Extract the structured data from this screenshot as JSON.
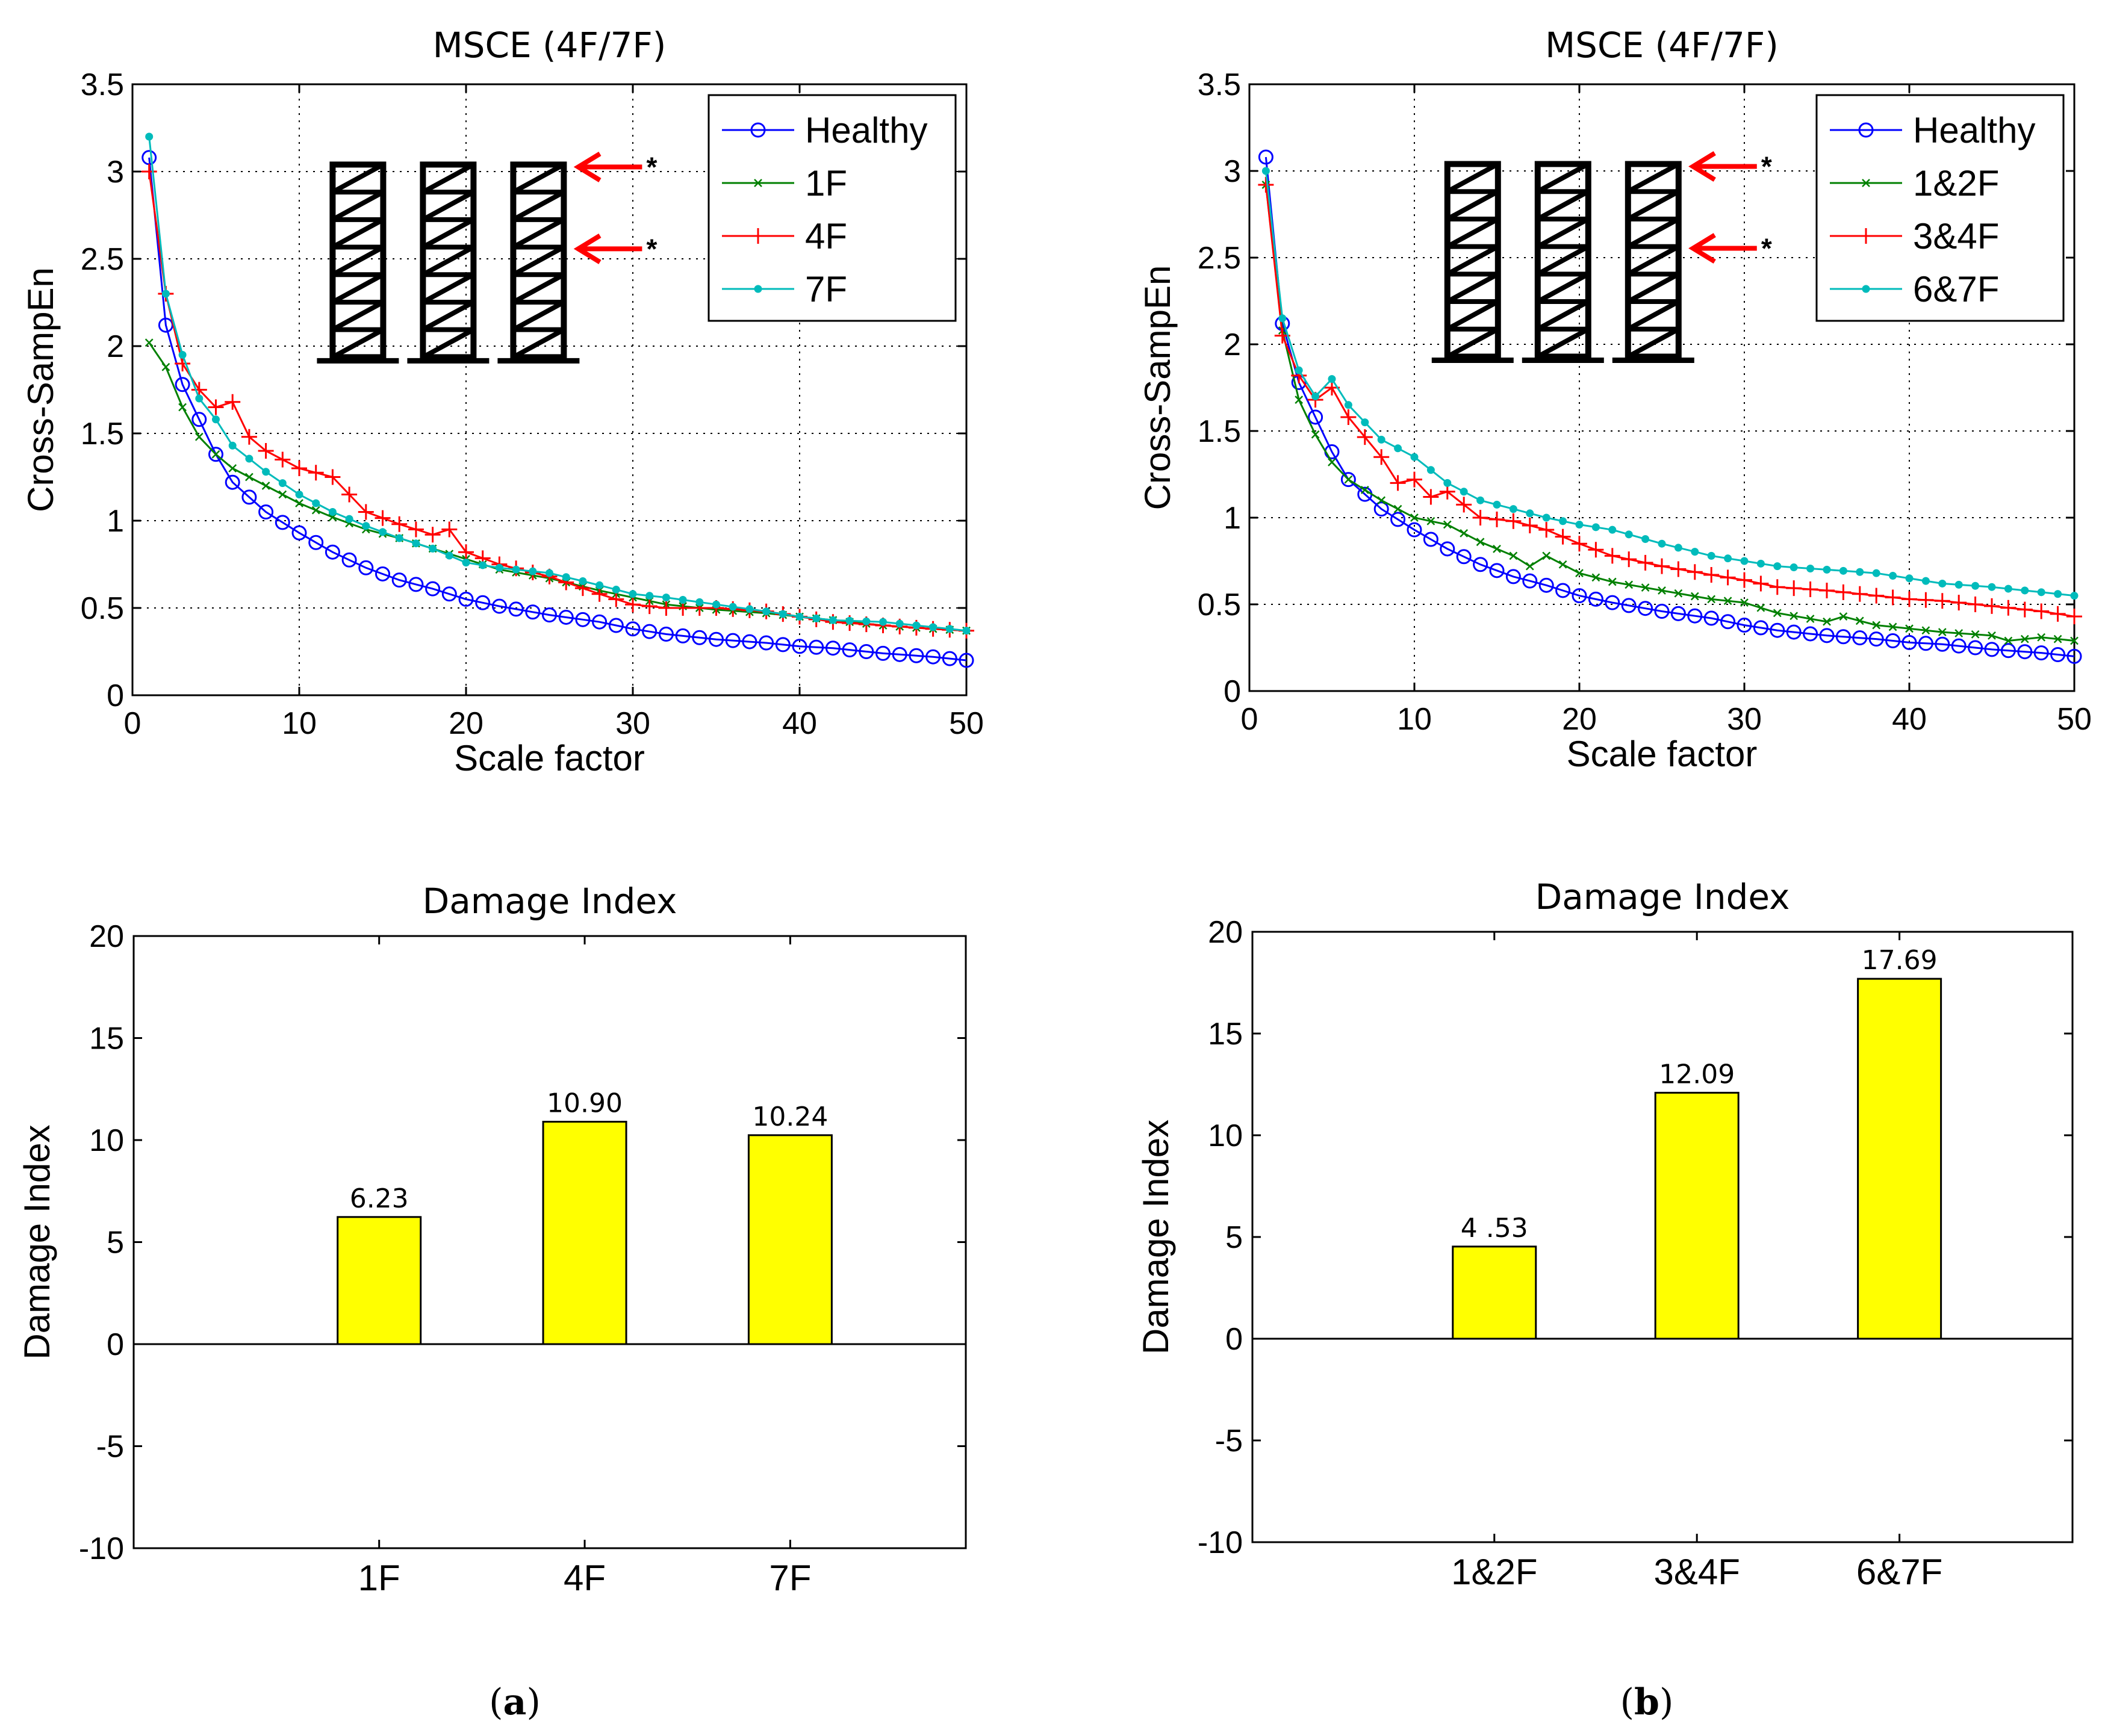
{
  "chart_data": [
    {
      "id": "a-line",
      "type": "line",
      "title": "MSCE (4F/7F)",
      "xlabel": "Scale factor",
      "ylabel": "Cross-SampEn",
      "xlim": [
        0,
        50
      ],
      "ylim": [
        0,
        3.5
      ],
      "xticks": [
        "0",
        "10",
        "20",
        "30",
        "40",
        "50"
      ],
      "yticks": [
        "0",
        "0.5",
        "1",
        "1.5",
        "2",
        "2.5",
        "3",
        "3.5"
      ],
      "grid": true,
      "legend_position": "top-right",
      "series": [
        {
          "name": "Healthy",
          "color": "#0000ff",
          "marker": "circle",
          "anchors": [
            [
              1,
              3.08
            ],
            [
              2,
              2.12
            ],
            [
              3,
              1.78
            ],
            [
              4,
              1.58
            ],
            [
              5,
              1.38
            ],
            [
              6,
              1.22
            ],
            [
              8,
              1.05
            ],
            [
              10,
              0.93
            ],
            [
              12,
              0.82
            ],
            [
              14,
              0.73
            ],
            [
              16,
              0.66
            ],
            [
              18,
              0.61
            ],
            [
              20,
              0.55
            ],
            [
              22,
              0.51
            ],
            [
              25,
              0.46
            ],
            [
              28,
              0.42
            ],
            [
              30,
              0.38
            ],
            [
              32,
              0.35
            ],
            [
              35,
              0.32
            ],
            [
              38,
              0.3
            ],
            [
              40,
              0.28
            ],
            [
              42,
              0.27
            ],
            [
              45,
              0.24
            ],
            [
              48,
              0.22
            ],
            [
              50,
              0.2
            ]
          ]
        },
        {
          "name": "1F",
          "color": "#008000",
          "marker": "x",
          "anchors": [
            [
              1,
              2.02
            ],
            [
              2,
              1.88
            ],
            [
              3,
              1.65
            ],
            [
              4,
              1.48
            ],
            [
              5,
              1.38
            ],
            [
              6,
              1.3
            ],
            [
              8,
              1.2
            ],
            [
              10,
              1.1
            ],
            [
              12,
              1.02
            ],
            [
              14,
              0.95
            ],
            [
              16,
              0.9
            ],
            [
              18,
              0.84
            ],
            [
              20,
              0.78
            ],
            [
              22,
              0.72
            ],
            [
              25,
              0.67
            ],
            [
              28,
              0.6
            ],
            [
              30,
              0.56
            ],
            [
              32,
              0.52
            ],
            [
              35,
              0.49
            ],
            [
              38,
              0.47
            ],
            [
              40,
              0.45
            ],
            [
              42,
              0.43
            ],
            [
              45,
              0.4
            ],
            [
              48,
              0.38
            ],
            [
              50,
              0.37
            ]
          ]
        },
        {
          "name": "4F",
          "color": "#ff0000",
          "marker": "plus",
          "anchors": [
            [
              1,
              3.0
            ],
            [
              2,
              2.3
            ],
            [
              3,
              1.9
            ],
            [
              4,
              1.75
            ],
            [
              5,
              1.65
            ],
            [
              6,
              1.68
            ],
            [
              7,
              1.48
            ],
            [
              8,
              1.4
            ],
            [
              10,
              1.3
            ],
            [
              12,
              1.25
            ],
            [
              14,
              1.05
            ],
            [
              16,
              0.98
            ],
            [
              18,
              0.92
            ],
            [
              19,
              0.95
            ],
            [
              20,
              0.82
            ],
            [
              22,
              0.75
            ],
            [
              25,
              0.68
            ],
            [
              28,
              0.58
            ],
            [
              30,
              0.52
            ],
            [
              32,
              0.5
            ],
            [
              35,
              0.5
            ],
            [
              38,
              0.48
            ],
            [
              40,
              0.45
            ],
            [
              42,
              0.42
            ],
            [
              45,
              0.4
            ],
            [
              48,
              0.38
            ],
            [
              50,
              0.37
            ]
          ]
        },
        {
          "name": "7F",
          "color": "#00bbbb",
          "marker": "dot",
          "anchors": [
            [
              1,
              3.2
            ],
            [
              2,
              2.3
            ],
            [
              3,
              1.95
            ],
            [
              4,
              1.7
            ],
            [
              5,
              1.58
            ],
            [
              6,
              1.43
            ],
            [
              8,
              1.28
            ],
            [
              10,
              1.15
            ],
            [
              12,
              1.05
            ],
            [
              14,
              0.97
            ],
            [
              16,
              0.9
            ],
            [
              18,
              0.84
            ],
            [
              20,
              0.76
            ],
            [
              22,
              0.73
            ],
            [
              25,
              0.7
            ],
            [
              28,
              0.63
            ],
            [
              30,
              0.58
            ],
            [
              32,
              0.56
            ],
            [
              35,
              0.52
            ],
            [
              38,
              0.48
            ],
            [
              40,
              0.45
            ],
            [
              42,
              0.43
            ],
            [
              45,
              0.42
            ],
            [
              48,
              0.39
            ],
            [
              50,
              0.37
            ]
          ]
        }
      ],
      "inset": {
        "frames": 3,
        "stories": 7,
        "arrow_labels": [
          "*",
          "*"
        ]
      }
    },
    {
      "id": "b-line",
      "type": "line",
      "title": "MSCE (4F/7F)",
      "xlabel": "Scale factor",
      "ylabel": "Cross-SampEn",
      "xlim": [
        0,
        50
      ],
      "ylim": [
        0,
        3.5
      ],
      "xticks": [
        "0",
        "10",
        "20",
        "30",
        "40",
        "50"
      ],
      "yticks": [
        "0",
        "0.5",
        "1",
        "1.5",
        "2",
        "2.5",
        "3",
        "3.5"
      ],
      "grid": true,
      "legend_position": "top-right",
      "series": [
        {
          "name": "Healthy",
          "color": "#0000ff",
          "marker": "circle",
          "anchors": [
            [
              1,
              3.08
            ],
            [
              2,
              2.12
            ],
            [
              3,
              1.78
            ],
            [
              4,
              1.58
            ],
            [
              5,
              1.38
            ],
            [
              6,
              1.22
            ],
            [
              8,
              1.05
            ],
            [
              10,
              0.93
            ],
            [
              12,
              0.82
            ],
            [
              14,
              0.73
            ],
            [
              16,
              0.66
            ],
            [
              18,
              0.61
            ],
            [
              20,
              0.55
            ],
            [
              22,
              0.51
            ],
            [
              25,
              0.46
            ],
            [
              28,
              0.42
            ],
            [
              30,
              0.38
            ],
            [
              32,
              0.35
            ],
            [
              35,
              0.32
            ],
            [
              38,
              0.3
            ],
            [
              40,
              0.28
            ],
            [
              42,
              0.27
            ],
            [
              45,
              0.24
            ],
            [
              48,
              0.22
            ],
            [
              50,
              0.2
            ]
          ]
        },
        {
          "name": "1&2F",
          "color": "#008000",
          "marker": "x",
          "anchors": [
            [
              1,
              2.92
            ],
            [
              2,
              2.08
            ],
            [
              3,
              1.68
            ],
            [
              4,
              1.48
            ],
            [
              5,
              1.32
            ],
            [
              6,
              1.22
            ],
            [
              8,
              1.1
            ],
            [
              10,
              1.0
            ],
            [
              12,
              0.96
            ],
            [
              14,
              0.86
            ],
            [
              16,
              0.78
            ],
            [
              17,
              0.72
            ],
            [
              18,
              0.78
            ],
            [
              20,
              0.68
            ],
            [
              22,
              0.63
            ],
            [
              25,
              0.58
            ],
            [
              28,
              0.53
            ],
            [
              30,
              0.51
            ],
            [
              32,
              0.45
            ],
            [
              35,
              0.4
            ],
            [
              36,
              0.43
            ],
            [
              38,
              0.38
            ],
            [
              40,
              0.36
            ],
            [
              42,
              0.34
            ],
            [
              45,
              0.32
            ],
            [
              46,
              0.29
            ],
            [
              48,
              0.31
            ],
            [
              50,
              0.29
            ]
          ]
        },
        {
          "name": "3&4F",
          "color": "#ff0000",
          "marker": "plus",
          "anchors": [
            [
              1,
              2.92
            ],
            [
              2,
              2.05
            ],
            [
              3,
              1.82
            ],
            [
              4,
              1.68
            ],
            [
              5,
              1.75
            ],
            [
              6,
              1.58
            ],
            [
              8,
              1.35
            ],
            [
              9,
              1.2
            ],
            [
              10,
              1.22
            ],
            [
              11,
              1.12
            ],
            [
              12,
              1.15
            ],
            [
              14,
              1.0
            ],
            [
              16,
              0.98
            ],
            [
              18,
              0.93
            ],
            [
              20,
              0.85
            ],
            [
              22,
              0.78
            ],
            [
              25,
              0.72
            ],
            [
              28,
              0.67
            ],
            [
              30,
              0.64
            ],
            [
              32,
              0.6
            ],
            [
              35,
              0.58
            ],
            [
              38,
              0.55
            ],
            [
              40,
              0.53
            ],
            [
              42,
              0.52
            ],
            [
              45,
              0.49
            ],
            [
              48,
              0.46
            ],
            [
              50,
              0.43
            ]
          ]
        },
        {
          "name": "6&7F",
          "color": "#00bbbb",
          "marker": "dot",
          "anchors": [
            [
              1,
              3.0
            ],
            [
              2,
              2.15
            ],
            [
              3,
              1.85
            ],
            [
              4,
              1.7
            ],
            [
              5,
              1.8
            ],
            [
              6,
              1.65
            ],
            [
              8,
              1.45
            ],
            [
              10,
              1.35
            ],
            [
              12,
              1.2
            ],
            [
              14,
              1.1
            ],
            [
              16,
              1.05
            ],
            [
              18,
              1.0
            ],
            [
              20,
              0.96
            ],
            [
              22,
              0.93
            ],
            [
              25,
              0.85
            ],
            [
              28,
              0.78
            ],
            [
              30,
              0.75
            ],
            [
              32,
              0.72
            ],
            [
              35,
              0.7
            ],
            [
              38,
              0.68
            ],
            [
              40,
              0.65
            ],
            [
              42,
              0.62
            ],
            [
              45,
              0.6
            ],
            [
              48,
              0.57
            ],
            [
              50,
              0.55
            ]
          ]
        }
      ],
      "inset": {
        "frames": 3,
        "stories": 7,
        "arrow_labels": [
          "*",
          "*"
        ]
      }
    },
    {
      "id": "a-bar",
      "type": "bar",
      "title": "Damage Index",
      "xlabel": "",
      "ylabel": "Damage Index",
      "categories": [
        "1F",
        "4F",
        "7F"
      ],
      "values": [
        6.23,
        10.9,
        10.24
      ],
      "value_labels": [
        "6.23",
        "10.90",
        "10.24"
      ],
      "ylim": [
        -10,
        20
      ],
      "yticks": [
        "-10",
        "-5",
        "0",
        "5",
        "10",
        "15",
        "20"
      ],
      "bar_color": "#ffff00",
      "grid": false
    },
    {
      "id": "b-bar",
      "type": "bar",
      "title": "Damage Index",
      "xlabel": "",
      "ylabel": "Damage Index",
      "categories": [
        "1&2F",
        "3&4F",
        "6&7F"
      ],
      "values": [
        4.53,
        12.09,
        17.69
      ],
      "value_labels": [
        "4 .53",
        "12.09",
        "17.69"
      ],
      "ylim": [
        -10,
        20
      ],
      "yticks": [
        "-10",
        "-5",
        "0",
        "5",
        "10",
        "15",
        "20"
      ],
      "bar_color": "#ffff00",
      "grid": false
    }
  ],
  "captions": {
    "a": {
      "open": "(",
      "letter": "a",
      "close": ")"
    },
    "b": {
      "open": "(",
      "letter": "b",
      "close": ")"
    }
  }
}
